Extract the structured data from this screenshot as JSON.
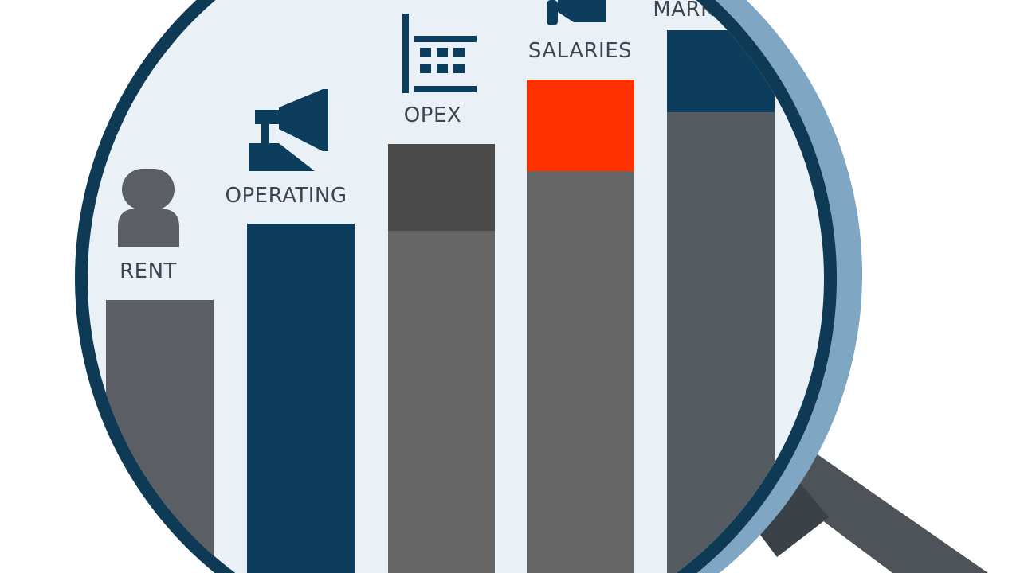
{
  "labels": {
    "rent": "RENT",
    "operating": "OPERATING",
    "opex": "OPEX",
    "salaries": "SALARIES",
    "marketing_partial": "MARK"
  },
  "icons": [
    "person-icon",
    "megaphone-icon",
    "building-icon",
    "megaphone-icon"
  ],
  "colors": {
    "navy": "#0d3d5c",
    "gray": "#5f6366",
    "dark_gray": "#4a4a4a",
    "highlight_red": "#ff3300",
    "lens_ring": "#0e3a55",
    "lens_outer_ring": "#7fa6c2",
    "lens_fill": "#e9f1f7"
  }
}
